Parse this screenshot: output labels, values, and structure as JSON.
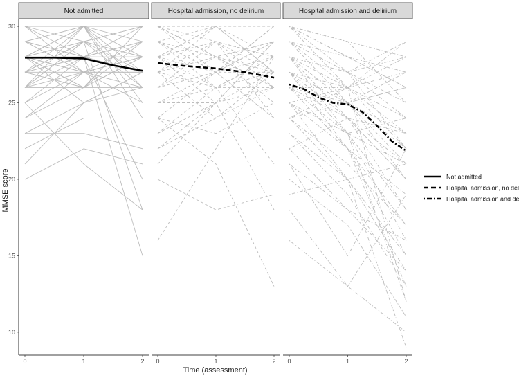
{
  "chart_data": {
    "type": "line",
    "xlabel": "Time (assessment)",
    "ylabel": "MMSE score",
    "xlim": [
      0,
      2
    ],
    "ylim": [
      8.5,
      30.5
    ],
    "x_ticks": [
      "0",
      "1",
      "2"
    ],
    "y_ticks": [
      "10",
      "15",
      "20",
      "25",
      "30"
    ],
    "grid": false,
    "legend_position": "right",
    "colors": {
      "individual": "#bdbdbd",
      "smooth": "#000000",
      "strip_fill": "#d9d9d9",
      "strip_border": "#333333"
    },
    "panels": [
      {
        "name": "Not admitted",
        "linetype": "solid",
        "individual_trajectories": [
          [
            28,
            30,
            30
          ],
          [
            28,
            28,
            29
          ],
          [
            27,
            28,
            28
          ],
          [
            27,
            29,
            26
          ],
          [
            29,
            27,
            28
          ],
          [
            26,
            29,
            30
          ],
          [
            28,
            30,
            26
          ],
          [
            27,
            27,
            27
          ],
          [
            29,
            30,
            28
          ],
          [
            30,
            30,
            29
          ],
          [
            26,
            28,
            27
          ],
          [
            28,
            27,
            25
          ],
          [
            27,
            26,
            28
          ],
          [
            25,
            27,
            26
          ],
          [
            23,
            25,
            27
          ],
          [
            21,
            25,
            26
          ],
          [
            20,
            22,
            21
          ],
          [
            24,
            27,
            28
          ],
          [
            27,
            29,
            28
          ],
          [
            29,
            28,
            27
          ],
          [
            28,
            29,
            30
          ],
          [
            26,
            27,
            29
          ],
          [
            28,
            26,
            28
          ],
          [
            23,
            23,
            22
          ],
          [
            25,
            21,
            18
          ],
          [
            27,
            28,
            15
          ],
          [
            30,
            28,
            27
          ],
          [
            29,
            30,
            25
          ],
          [
            28,
            26,
            30
          ],
          [
            26,
            30,
            27
          ],
          [
            27,
            29,
            18
          ],
          [
            28,
            28,
            20
          ],
          [
            29,
            27,
            28
          ],
          [
            28,
            25,
            27
          ],
          [
            27,
            30,
            24
          ],
          [
            25,
            28,
            30
          ],
          [
            30,
            27,
            27
          ],
          [
            26,
            26,
            26
          ],
          [
            29,
            28,
            29
          ],
          [
            28,
            29,
            27
          ],
          [
            24,
            26,
            30
          ],
          [
            22,
            24,
            24
          ],
          [
            27,
            26,
            29
          ],
          [
            28,
            27,
            28
          ],
          [
            30,
            29,
            30
          ],
          [
            26,
            29,
            28
          ]
        ],
        "smooth": [
          [
            0,
            27.95
          ],
          [
            0.5,
            27.95
          ],
          [
            1,
            27.9
          ],
          [
            1.5,
            27.45
          ],
          [
            2,
            27.1
          ]
        ]
      },
      {
        "name": "Hospital admission, no delirium",
        "linetype": "dashed",
        "individual_trajectories": [
          [
            30,
            28,
            29
          ],
          [
            28,
            29,
            26
          ],
          [
            27,
            26,
            28
          ],
          [
            29,
            27,
            30
          ],
          [
            26,
            28,
            27
          ],
          [
            25,
            27,
            24
          ],
          [
            28,
            25,
            29
          ],
          [
            24,
            27,
            28
          ],
          [
            30,
            30,
            27
          ],
          [
            27,
            28,
            25
          ],
          [
            22,
            25,
            27
          ],
          [
            16,
            22,
            28
          ],
          [
            20,
            18,
            19
          ],
          [
            23,
            26,
            21
          ],
          [
            25,
            27,
            30
          ],
          [
            29,
            26,
            28
          ],
          [
            28,
            30,
            27
          ],
          [
            27,
            24,
            26
          ],
          [
            26,
            29,
            28
          ],
          [
            24,
            21,
            13
          ],
          [
            30,
            27,
            29
          ],
          [
            28,
            26,
            26
          ],
          [
            22,
            24,
            27
          ],
          [
            27,
            29,
            24
          ],
          [
            29,
            28,
            26
          ],
          [
            25,
            25,
            29
          ],
          [
            26,
            27,
            30
          ],
          [
            28,
            29,
            27
          ],
          [
            24,
            23,
            25
          ],
          [
            21,
            25,
            18
          ],
          [
            30,
            29,
            28
          ],
          [
            27,
            28,
            29
          ],
          [
            29,
            30,
            30
          ],
          [
            23,
            25,
            26
          ],
          [
            26,
            27,
            24
          ],
          [
            28,
            27,
            27
          ],
          [
            30,
            28,
            26
          ],
          [
            25,
            26,
            27
          ],
          [
            27,
            30,
            28
          ],
          [
            29,
            27,
            29
          ]
        ],
        "smooth": [
          [
            0,
            27.6
          ],
          [
            0.5,
            27.4
          ],
          [
            1,
            27.25
          ],
          [
            1.5,
            27.0
          ],
          [
            2,
            26.65
          ]
        ]
      },
      {
        "name": "Hospital admission and delirium",
        "linetype": "dotdash",
        "individual_trajectories": [
          [
            30,
            28,
            26
          ],
          [
            28,
            25,
            21
          ],
          [
            27,
            24,
            18
          ],
          [
            29,
            27,
            22
          ],
          [
            26,
            22,
            15
          ],
          [
            25,
            23,
            12
          ],
          [
            24,
            20,
            9
          ],
          [
            28,
            26,
            24
          ],
          [
            30,
            29,
            28
          ],
          [
            27,
            25,
            23
          ],
          [
            16,
            13,
            19
          ],
          [
            21,
            15,
            22
          ],
          [
            22,
            18,
            16
          ],
          [
            20,
            17,
            11
          ],
          [
            19,
            20,
            14
          ],
          [
            18,
            13,
            10
          ],
          [
            26,
            26,
            27
          ],
          [
            29,
            25,
            20
          ],
          [
            28,
            27,
            25
          ],
          [
            27,
            22,
            17
          ],
          [
            25,
            26,
            29
          ],
          [
            23,
            19,
            13
          ],
          [
            30,
            27,
            24
          ],
          [
            26,
            24,
            20
          ],
          [
            28,
            23,
            16
          ],
          [
            24,
            21,
            17
          ],
          [
            29,
            28,
            26
          ],
          [
            27,
            26,
            22
          ],
          [
            26,
            22,
            19
          ],
          [
            25,
            20,
            15
          ],
          [
            30,
            26,
            12
          ],
          [
            28,
            27,
            28
          ],
          [
            24,
            25,
            26
          ],
          [
            22,
            24,
            21
          ],
          [
            27,
            23,
            18
          ],
          [
            29,
            26,
            23
          ],
          [
            26,
            25,
            27
          ],
          [
            28,
            24,
            20
          ],
          [
            25,
            22,
            13
          ],
          [
            30,
            29,
            25
          ],
          [
            23,
            20,
            21
          ],
          [
            27,
            25,
            26
          ],
          [
            21,
            18,
            14
          ],
          [
            29,
            27,
            29
          ],
          [
            26,
            23,
            21
          ],
          [
            28,
            25,
            22
          ],
          [
            24,
            26,
            28
          ],
          [
            30,
            28,
            27
          ],
          [
            27,
            24,
            23
          ],
          [
            25,
            23,
            24
          ]
        ],
        "smooth": [
          [
            0,
            26.2
          ],
          [
            0.25,
            25.9
          ],
          [
            0.5,
            25.35
          ],
          [
            0.75,
            25.0
          ],
          [
            1,
            24.9
          ],
          [
            1.25,
            24.4
          ],
          [
            1.5,
            23.5
          ],
          [
            1.75,
            22.5
          ],
          [
            2,
            21.85
          ]
        ]
      }
    ],
    "legend": [
      {
        "label": "Not admitted",
        "linetype": "solid"
      },
      {
        "label": "Hospital admission, no delirium",
        "linetype": "dashed"
      },
      {
        "label": "Hospital admission and delirium",
        "linetype": "dotdash"
      }
    ]
  }
}
